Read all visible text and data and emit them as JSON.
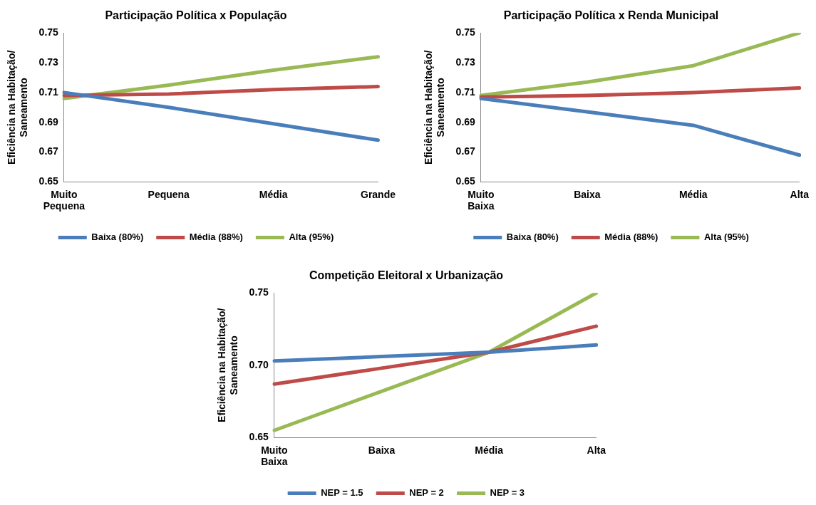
{
  "chart_data": [
    {
      "type": "line",
      "title": "Participação Política x População",
      "ylabel": "Eficiência na Habitação/Saneamento",
      "categories": [
        "Muito Pequena",
        "Pequena",
        "Média",
        "Grande"
      ],
      "ylim": [
        0.65,
        0.75
      ],
      "yticks": [
        0.65,
        0.67,
        0.69,
        0.71,
        0.73,
        0.75
      ],
      "grid": false,
      "legend": "bottom",
      "marker": "none",
      "line_style": "solid",
      "series": [
        {
          "name": "Baixa (80%)",
          "color": "#4a7ebb",
          "values": [
            0.71,
            0.7,
            0.689,
            0.678
          ]
        },
        {
          "name": "Média (88%)",
          "color": "#be4b48",
          "values": [
            0.708,
            0.709,
            0.712,
            0.714
          ]
        },
        {
          "name": "Alta (95%)",
          "color": "#98b954",
          "values": [
            0.706,
            0.715,
            0.725,
            0.734
          ]
        }
      ]
    },
    {
      "type": "line",
      "title": "Participação Política x Renda Municipal",
      "ylabel": "Eficiência na Habitação/Saneamento",
      "categories": [
        "Muito Baixa",
        "Baixa",
        "Média",
        "Alta"
      ],
      "ylim": [
        0.65,
        0.75
      ],
      "yticks": [
        0.65,
        0.67,
        0.69,
        0.71,
        0.73,
        0.75
      ],
      "grid": false,
      "legend": "bottom",
      "marker": "none",
      "line_style": "solid",
      "series": [
        {
          "name": "Baixa (80%)",
          "color": "#4a7ebb",
          "values": [
            0.706,
            0.697,
            0.688,
            0.668
          ]
        },
        {
          "name": "Média (88%)",
          "color": "#be4b48",
          "values": [
            0.707,
            0.708,
            0.71,
            0.713
          ]
        },
        {
          "name": "Alta (95%)",
          "color": "#98b954",
          "values": [
            0.708,
            0.717,
            0.728,
            0.75
          ]
        }
      ]
    },
    {
      "type": "line",
      "title": "Competição Eleitoral x Urbanização",
      "ylabel": "Eficiência na Habitação/Saneamento",
      "categories": [
        "Muito Baixa",
        "Baixa",
        "Média",
        "Alta"
      ],
      "ylim": [
        0.65,
        0.75
      ],
      "yticks": [
        {
          "value": 0.65,
          "label": "0.65"
        },
        {
          "value": 0.7,
          "label": "0.70"
        },
        {
          "value": 0.75,
          "label": "0.75"
        }
      ],
      "grid": false,
      "legend": "bottom",
      "marker": "none",
      "line_style": "solid",
      "series": [
        {
          "name": "NEP = 1.5",
          "color": "#4a7ebb",
          "values": [
            0.703,
            0.706,
            0.709,
            0.714
          ]
        },
        {
          "name": "NEP = 2",
          "color": "#be4b48",
          "values": [
            0.687,
            0.698,
            0.709,
            0.727
          ]
        },
        {
          "name": "NEP = 3",
          "color": "#98b954",
          "values": [
            0.655,
            0.682,
            0.709,
            0.75
          ]
        }
      ]
    }
  ]
}
